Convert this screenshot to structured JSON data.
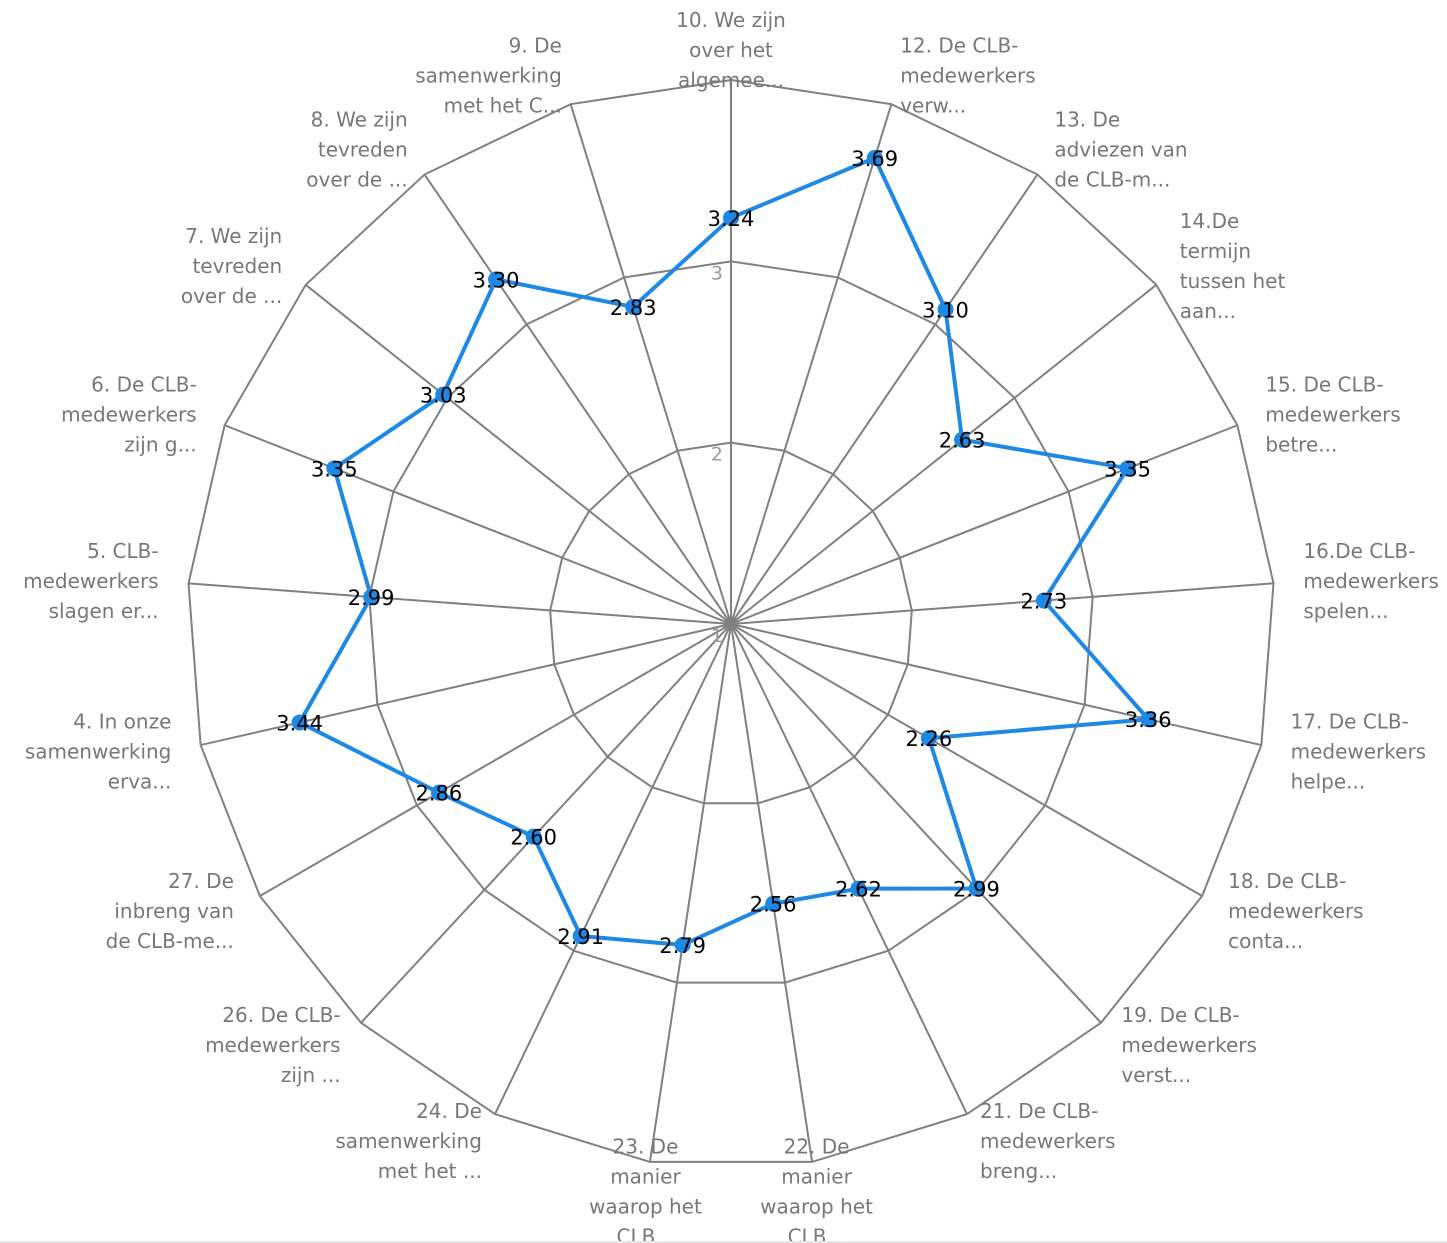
{
  "chart_data": {
    "type": "radar",
    "r_ticks": [
      "1",
      "2",
      "3"
    ],
    "r_min": 1,
    "r_max": 4,
    "grid": true,
    "series_color": "#1e88e5",
    "grid_color": "#808080",
    "categories": [
      {
        "label": [
          "10. We zijn",
          "over het",
          "algemee..."
        ],
        "value": 3.24
      },
      {
        "label": [
          "12. De CLB-",
          "medewerkers",
          "verw..."
        ],
        "value": 3.69
      },
      {
        "label": [
          "13. De",
          "adviezen van",
          "de CLB-m..."
        ],
        "value": 3.1
      },
      {
        "label": [
          "14.De",
          "termijn",
          "tussen het",
          "aan..."
        ],
        "value": 2.63
      },
      {
        "label": [
          "15. De CLB-",
          "medewerkers",
          "betre..."
        ],
        "value": 3.35
      },
      {
        "label": [
          "16.De CLB-",
          "medewerkers",
          "spelen..."
        ],
        "value": 2.73
      },
      {
        "label": [
          "17. De CLB-",
          "medewerkers",
          "helpe..."
        ],
        "value": 3.36
      },
      {
        "label": [
          "18. De CLB-",
          "medewerkers",
          "conta..."
        ],
        "value": 2.26
      },
      {
        "label": [
          "19. De CLB-",
          "medewerkers",
          "verst..."
        ],
        "value": 2.99
      },
      {
        "label": [
          "21. De CLB-",
          "medewerkers",
          "breng..."
        ],
        "value": 2.62
      },
      {
        "label": [
          "22. De",
          "manier",
          "waarop het",
          "CLB..."
        ],
        "value": 2.56
      },
      {
        "label": [
          "23. De",
          "manier",
          "waarop het",
          "CLB..."
        ],
        "value": 2.79
      },
      {
        "label": [
          "24. De",
          "samenwerking",
          "met het ..."
        ],
        "value": 2.91
      },
      {
        "label": [
          "26. De CLB-",
          "medewerkers",
          "zijn ..."
        ],
        "value": 2.6
      },
      {
        "label": [
          "27. De",
          "inbreng van",
          "de CLB-me..."
        ],
        "value": 2.86
      },
      {
        "label": [
          "4. In onze",
          "samenwerking",
          "erva..."
        ],
        "value": 3.44
      },
      {
        "label": [
          "5. CLB-",
          "medewerkers",
          "slagen er..."
        ],
        "value": 2.99
      },
      {
        "label": [
          "6. De CLB-",
          "medewerkers",
          "zijn g..."
        ],
        "value": 3.35
      },
      {
        "label": [
          "7. We zijn",
          "tevreden",
          "over de ..."
        ],
        "value": 3.03
      },
      {
        "label": [
          "8. We zijn",
          "tevreden",
          "over de ..."
        ],
        "value": 3.3
      },
      {
        "label": [
          "9. De",
          "samenwerking",
          "met het C..."
        ],
        "value": 2.83
      }
    ],
    "data_labels": [
      "3.24",
      "3.69",
      "3.10",
      "2.63",
      "3.35",
      "2.73",
      "3.36",
      "2.26",
      "2.99",
      "2.62",
      "2.56",
      "2.79",
      "2.91",
      "2.60",
      "2.86",
      "3.44",
      "2.99",
      "3.35",
      "3.03",
      "3.30",
      "2.83"
    ]
  }
}
